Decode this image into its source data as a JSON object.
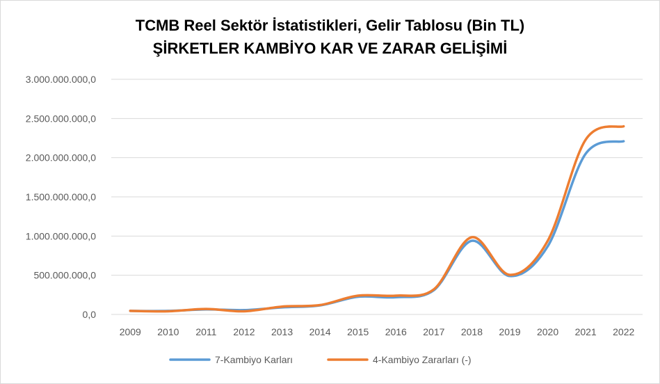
{
  "chart_data": {
    "type": "line",
    "title": "TCMB Reel Sektör İstatistikleri, Gelir Tablosu (Bin TL)",
    "subtitle": "ŞİRKETLER KAMBİYO KAR VE ZARAR GELİŞİMİ",
    "categories": [
      "2009",
      "2010",
      "2011",
      "2012",
      "2013",
      "2014",
      "2015",
      "2016",
      "2017",
      "2018",
      "2019",
      "2020",
      "2021",
      "2022"
    ],
    "y_ticks": [
      "0,0",
      "500.000.000,0",
      "1.000.000.000,0",
      "1.500.000.000,0",
      "2.000.000.000,0",
      "2.500.000.000,0",
      "3.000.000.000,0"
    ],
    "ylim": [
      0,
      3000000000
    ],
    "grid": true,
    "legend_position": "bottom",
    "series": [
      {
        "name": "7-Kambiyo Karları",
        "color": "#5B9BD5",
        "values": [
          45000000,
          45000000,
          65000000,
          55000000,
          90000000,
          115000000,
          225000000,
          220000000,
          310000000,
          940000000,
          490000000,
          870000000,
          2050000000,
          2210000000
        ]
      },
      {
        "name": "4-Kambiyo Zararları (-)",
        "color": "#ED7D31",
        "values": [
          45000000,
          40000000,
          70000000,
          40000000,
          100000000,
          120000000,
          240000000,
          240000000,
          320000000,
          985000000,
          505000000,
          940000000,
          2230000000,
          2400000000
        ]
      }
    ]
  }
}
